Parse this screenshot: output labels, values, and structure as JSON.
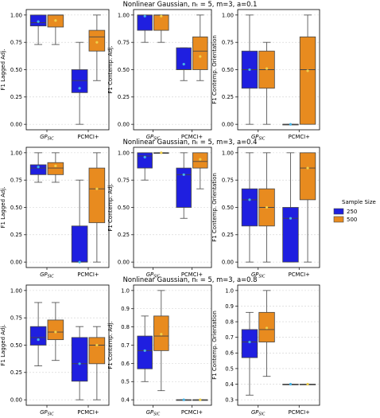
{
  "legend": {
    "title": "Sample Size",
    "entries": [
      {
        "label": "250",
        "color": "#1f1fe0"
      },
      {
        "label": "500",
        "color": "#e88b1f"
      }
    ]
  },
  "colors": {
    "series_250": "#1f1fe0",
    "series_500": "#e88b1f",
    "mean_250": "#45b3e6",
    "mean_500": "#f0d04a"
  },
  "chart_data": [
    {
      "type": "box",
      "title": "Nonlinear Gaussian, n_t = 5, m=3, a=0.1",
      "ylabel": "F1 Lagged Adj.",
      "ylim": [
        0,
        1
      ],
      "ticks": [
        "0.00",
        "0.25",
        "0.50",
        "0.75",
        "1.00"
      ],
      "categories": [
        "GP_SIC",
        "PCMCI+"
      ],
      "series": [
        {
          "name": "250",
          "boxes": [
            {
              "min": 0.73,
              "q1": 0.9,
              "median": 0.93,
              "q3": 1.0,
              "max": 1.0,
              "mean": 0.94
            },
            {
              "min": 0.0,
              "q1": 0.29,
              "median": 0.4,
              "q3": 0.5,
              "max": 0.75,
              "mean": 0.33
            }
          ]
        },
        {
          "name": "500",
          "boxes": [
            {
              "min": 0.73,
              "q1": 0.89,
              "median": 1.0,
              "q3": 1.0,
              "max": 1.0,
              "mean": 0.95
            },
            {
              "min": 0.4,
              "q1": 0.67,
              "median": 0.8,
              "q3": 0.86,
              "max": 1.0,
              "mean": 0.75
            }
          ]
        }
      ]
    },
    {
      "type": "box",
      "title": "",
      "ylabel": "F1 Contemp. Adj.",
      "ylim": [
        0,
        1
      ],
      "ticks": [
        "0.00",
        "0.25",
        "0.50",
        "0.75",
        "1.00"
      ],
      "categories": [
        "GP_SIC",
        "PCMCI+"
      ],
      "series": [
        {
          "name": "250",
          "boxes": [
            {
              "min": 0.75,
              "q1": 0.86,
              "median": 1.0,
              "q3": 1.0,
              "max": 1.0,
              "mean": 0.99
            },
            {
              "min": 0.4,
              "q1": 0.5,
              "median": 0.5,
              "q3": 0.7,
              "max": 0.7,
              "mean": 0.55
            }
          ]
        },
        {
          "name": "500",
          "boxes": [
            {
              "min": 0.75,
              "q1": 0.86,
              "median": 1.0,
              "q3": 1.0,
              "max": 1.0,
              "mean": 0.99
            },
            {
              "min": 0.4,
              "q1": 0.5,
              "median": 0.67,
              "q3": 0.8,
              "max": 1.0,
              "mean": 0.62
            }
          ]
        }
      ]
    },
    {
      "type": "box",
      "title": "",
      "ylabel": "F1 Contemp. Orientation",
      "ylim": [
        0,
        1
      ],
      "ticks": [
        "0.00",
        "0.25",
        "0.50",
        "0.75",
        "1.00"
      ],
      "categories": [
        "GP_SIC",
        "PCMCI+"
      ],
      "series": [
        {
          "name": "250",
          "boxes": [
            {
              "min": 0.0,
              "q1": 0.33,
              "median": 0.5,
              "q3": 0.67,
              "max": 1.0,
              "mean": 0.5
            },
            {
              "min": 0.0,
              "q1": 0.0,
              "median": 0.0,
              "q3": 0.0,
              "max": 0.0,
              "mean": 0.0
            }
          ]
        },
        {
          "name": "500",
          "boxes": [
            {
              "min": 0.0,
              "q1": 0.33,
              "median": 0.5,
              "q3": 0.67,
              "max": 0.75,
              "mean": 0.51
            },
            {
              "min": 0.0,
              "q1": 0.0,
              "median": 0.5,
              "q3": 0.8,
              "max": 1.0,
              "mean": 0.49
            }
          ]
        }
      ]
    },
    {
      "type": "box",
      "title": "Nonlinear Gaussian, n_t = 5, m=3, a=0.4",
      "ylabel": "F1 Lagged Adj.",
      "ylim": [
        0,
        1
      ],
      "ticks": [
        "0.00",
        "0.25",
        "0.50",
        "0.75",
        "1.00"
      ],
      "categories": [
        "GP_SIC",
        "PCMCI+"
      ],
      "series": [
        {
          "name": "250",
          "boxes": [
            {
              "min": 0.73,
              "q1": 0.8,
              "median": 0.86,
              "q3": 0.89,
              "max": 1.0,
              "mean": 0.87
            },
            {
              "min": 0.0,
              "q1": 0.0,
              "median": 0.0,
              "q3": 0.33,
              "max": 0.75,
              "mean": 0.0
            }
          ]
        },
        {
          "name": "500",
          "boxes": [
            {
              "min": 0.73,
              "q1": 0.8,
              "median": 0.86,
              "q3": 0.91,
              "max": 1.0,
              "mean": 0.88
            },
            {
              "min": 0.0,
              "q1": 0.36,
              "median": 0.67,
              "q3": 0.86,
              "max": 1.0,
              "mean": 0.67
            }
          ]
        }
      ]
    },
    {
      "type": "box",
      "title": "",
      "ylabel": "F1 Contemp. Adj.",
      "ylim": [
        0,
        1
      ],
      "ticks": [
        "0.00",
        "0.25",
        "0.50",
        "0.75",
        "1.00"
      ],
      "categories": [
        "GP_SIC",
        "PCMCI+"
      ],
      "series": [
        {
          "name": "250",
          "boxes": [
            {
              "min": 0.75,
              "q1": 0.86,
              "median": 0.97,
              "q3": 1.0,
              "max": 1.0,
              "mean": 0.96
            },
            {
              "min": 0.4,
              "q1": 0.5,
              "median": 0.8,
              "q3": 0.86,
              "max": 1.0,
              "mean": 0.8
            }
          ]
        },
        {
          "name": "500",
          "boxes": [
            {
              "min": 1.0,
              "q1": 1.0,
              "median": 1.0,
              "q3": 1.0,
              "max": 1.0,
              "mean": 1.0
            },
            {
              "min": 0.67,
              "q1": 0.86,
              "median": 0.92,
              "q3": 1.0,
              "max": 1.0,
              "mean": 0.94
            }
          ]
        }
      ]
    },
    {
      "type": "box",
      "title": "",
      "ylabel": "F1 Contemp. Orientation",
      "ylim": [
        0,
        1
      ],
      "ticks": [
        "0.00",
        "0.25",
        "0.50",
        "0.75",
        "1.00"
      ],
      "categories": [
        "GP_SIC",
        "PCMCI+"
      ],
      "series": [
        {
          "name": "250",
          "boxes": [
            {
              "min": 0.0,
              "q1": 0.33,
              "median": 0.57,
              "q3": 0.67,
              "max": 1.0,
              "mean": 0.57
            },
            {
              "min": 0.0,
              "q1": 0.0,
              "median": 0.4,
              "q3": 0.5,
              "max": 1.0,
              "mean": 0.4
            }
          ]
        },
        {
          "name": "500",
          "boxes": [
            {
              "min": 0.0,
              "q1": 0.33,
              "median": 0.5,
              "q3": 0.67,
              "max": 1.0,
              "mean": 0.5
            },
            {
              "min": 0.0,
              "q1": 0.57,
              "median": 0.86,
              "q3": 1.0,
              "max": 1.0,
              "mean": 0.86
            }
          ]
        }
      ]
    },
    {
      "type": "box",
      "title": "Nonlinear Gaussian, n_t = 5, m=3, a=0.8",
      "ylabel": "F1 Lagged Adj.",
      "ylim": [
        0,
        1
      ],
      "ticks": [
        "0.00",
        "0.25",
        "0.50",
        "0.75",
        "1.00"
      ],
      "categories": [
        "GP_SIC",
        "PCMCI+"
      ],
      "series": [
        {
          "name": "250",
          "boxes": [
            {
              "min": 0.31,
              "q1": 0.5,
              "median": 0.57,
              "q3": 0.67,
              "max": 0.89,
              "mean": 0.55
            },
            {
              "min": 0.0,
              "q1": 0.17,
              "median": 0.33,
              "q3": 0.57,
              "max": 0.67,
              "mean": 0.33
            }
          ]
        },
        {
          "name": "500",
          "boxes": [
            {
              "min": 0.36,
              "q1": 0.55,
              "median": 0.62,
              "q3": 0.73,
              "max": 0.89,
              "mean": 0.62
            },
            {
              "min": 0.0,
              "q1": 0.33,
              "median": 0.5,
              "q3": 0.57,
              "max": 0.67,
              "mean": 0.5
            }
          ]
        }
      ]
    },
    {
      "type": "box",
      "title": "",
      "ylabel": "F1 Contemp. Adj.",
      "ylim": [
        0.4,
        1.0
      ],
      "ticks": [
        "0.4",
        "0.5",
        "0.6",
        "0.7",
        "0.8",
        "0.9",
        "1.0"
      ],
      "categories": [
        "GP_SIC",
        "PCMCI+"
      ],
      "series": [
        {
          "name": "250",
          "boxes": [
            {
              "min": 0.5,
              "q1": 0.57,
              "median": 0.67,
              "q3": 0.75,
              "max": 0.86,
              "mean": 0.67
            },
            {
              "min": 0.4,
              "q1": 0.4,
              "median": 0.4,
              "q3": 0.4,
              "max": 0.4,
              "mean": 0.4
            }
          ]
        },
        {
          "name": "500",
          "boxes": [
            {
              "min": 0.45,
              "q1": 0.67,
              "median": 0.75,
              "q3": 0.86,
              "max": 1.0,
              "mean": 0.76
            },
            {
              "min": 0.4,
              "q1": 0.4,
              "median": 0.4,
              "q3": 0.4,
              "max": 0.4,
              "mean": 0.4
            }
          ]
        }
      ]
    },
    {
      "type": "box",
      "title": "",
      "ylabel": "F1 Contemp. Orientation",
      "ylim": [
        0.3,
        1.0
      ],
      "ticks": [
        "0.3",
        "0.4",
        "0.5",
        "0.6",
        "0.7",
        "0.8",
        "0.9",
        "1.0"
      ],
      "categories": [
        "GP_SIC",
        "PCMCI+"
      ],
      "series": [
        {
          "name": "250",
          "boxes": [
            {
              "min": 0.33,
              "q1": 0.57,
              "median": 0.67,
              "q3": 0.75,
              "max": 0.86,
              "mean": 0.67
            },
            {
              "min": 0.4,
              "q1": 0.4,
              "median": 0.4,
              "q3": 0.4,
              "max": 0.4,
              "mean": 0.4
            }
          ]
        },
        {
          "name": "500",
          "boxes": [
            {
              "min": 0.45,
              "q1": 0.67,
              "median": 0.75,
              "q3": 0.86,
              "max": 1.0,
              "mean": 0.76
            },
            {
              "min": 0.4,
              "q1": 0.4,
              "median": 0.4,
              "q3": 0.4,
              "max": 0.4,
              "mean": 0.4
            }
          ]
        }
      ]
    }
  ]
}
